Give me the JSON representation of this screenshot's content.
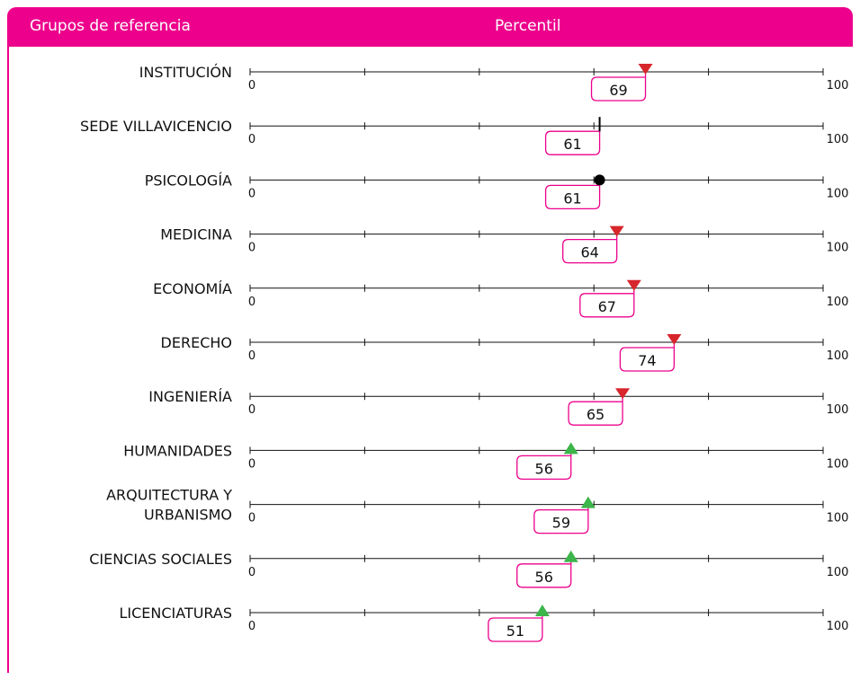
{
  "header": {
    "left": "Grupos de referencia",
    "center": "Percentil"
  },
  "colors": {
    "accent": "#ec008c",
    "below": "#d7262c",
    "above": "#3cb54a",
    "reference": "#000000"
  },
  "chart_data": {
    "type": "scatter",
    "xlim": [
      0,
      100
    ],
    "tick_labels": {
      "min": "0",
      "max": "100"
    },
    "rows": [
      {
        "label": [
          "INSTITUCIÓN"
        ],
        "value": 69,
        "value_label": "69",
        "marker": "triangle-down"
      },
      {
        "label": [
          "SEDE VILLAVICENCIO"
        ],
        "value": 61,
        "value_label": "61",
        "marker": "line"
      },
      {
        "label": [
          "PSICOLOGÍA"
        ],
        "value": 61,
        "value_label": "61",
        "marker": "circle"
      },
      {
        "label": [
          "MEDICINA"
        ],
        "value": 64,
        "value_label": "64",
        "marker": "triangle-down"
      },
      {
        "label": [
          "ECONOMÍA"
        ],
        "value": 67,
        "value_label": "67",
        "marker": "triangle-down"
      },
      {
        "label": [
          "DERECHO"
        ],
        "value": 74,
        "value_label": "74",
        "marker": "triangle-down"
      },
      {
        "label": [
          "INGENIERÍA"
        ],
        "value": 65,
        "value_label": "65",
        "marker": "triangle-down"
      },
      {
        "label": [
          "HUMANIDADES"
        ],
        "value": 56,
        "value_label": "56",
        "marker": "triangle-up"
      },
      {
        "label": [
          "ARQUITECTURA Y",
          "URBANISMO"
        ],
        "value": 59,
        "value_label": "59",
        "marker": "triangle-up"
      },
      {
        "label": [
          "CIENCIAS SOCIALES"
        ],
        "value": 56,
        "value_label": "56",
        "marker": "triangle-up"
      },
      {
        "label": [
          "LICENCIATURAS"
        ],
        "value": 51,
        "value_label": "51",
        "marker": "triangle-up"
      }
    ]
  }
}
